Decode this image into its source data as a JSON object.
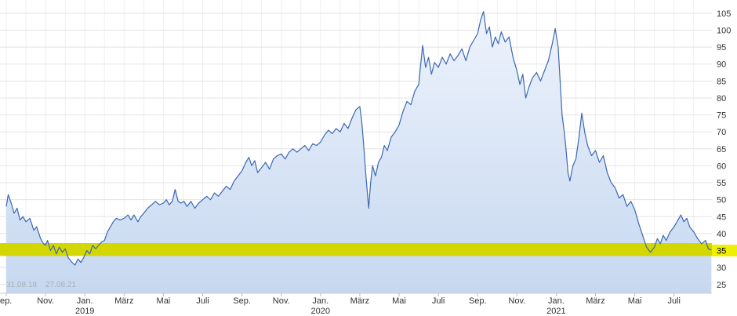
{
  "watermark": {
    "text": "31.08.18    27.08.21"
  },
  "colors": {
    "line": "#3a68b4",
    "fill_top": "#eef3fc",
    "fill_bottom": "#c6d8f0",
    "band": "#d4d600",
    "band_label_bg": "#eef000",
    "band_label_text": "#000000",
    "grid_h": "#e3e3e3",
    "grid_v": "#efefef",
    "axis_text": "#333333",
    "tick": "#bbbbbb",
    "axis_line": "#cccccc"
  },
  "chart_data": {
    "type": "area",
    "title": "",
    "xlabel": "",
    "ylabel": "",
    "x_unit": "months since Sep 2018",
    "date_range_start": "31.08.18",
    "date_range_end": "27.08.21",
    "ylim": [
      22.4,
      108.9
    ],
    "grid": true,
    "y_ticks": [
      105,
      100,
      95,
      90,
      85,
      80,
      75,
      70,
      65,
      60,
      55,
      50,
      45,
      40,
      35,
      30,
      25
    ],
    "last_price_band": {
      "value": 35,
      "low": 33.4,
      "high": 37.2
    },
    "x_ticks": [
      {
        "m": 0,
        "label": "ep.",
        "align": "start"
      },
      {
        "m": 2,
        "label": "Nov."
      },
      {
        "m": 4,
        "label": "Jan.",
        "year": "2019"
      },
      {
        "m": 6,
        "label": "März"
      },
      {
        "m": 8,
        "label": "Mai"
      },
      {
        "m": 10,
        "label": "Juli"
      },
      {
        "m": 12,
        "label": "Sep."
      },
      {
        "m": 14,
        "label": "Nov."
      },
      {
        "m": 16,
        "label": "Jan.",
        "year": "2020"
      },
      {
        "m": 18,
        "label": "März"
      },
      {
        "m": 20,
        "label": "Mai"
      },
      {
        "m": 22,
        "label": "Juli"
      },
      {
        "m": 24,
        "label": "Sep."
      },
      {
        "m": 26,
        "label": "Nov."
      },
      {
        "m": 28,
        "label": "Jan.",
        "year": "2021"
      },
      {
        "m": 30,
        "label": "März"
      },
      {
        "m": 32,
        "label": "Mai"
      },
      {
        "m": 34,
        "label": "Juli"
      }
    ],
    "points": [
      [
        0,
        48
      ],
      [
        0.1,
        51.5
      ],
      [
        0.25,
        49
      ],
      [
        0.4,
        46
      ],
      [
        0.55,
        47.5
      ],
      [
        0.7,
        44
      ],
      [
        0.85,
        45
      ],
      [
        1.0,
        43.5
      ],
      [
        1.2,
        44.5
      ],
      [
        1.4,
        41
      ],
      [
        1.55,
        42
      ],
      [
        1.75,
        38.5
      ],
      [
        1.9,
        37
      ],
      [
        2.0,
        36.5
      ],
      [
        2.1,
        38
      ],
      [
        2.25,
        35
      ],
      [
        2.4,
        36.5
      ],
      [
        2.55,
        34
      ],
      [
        2.7,
        36
      ],
      [
        2.85,
        34.5
      ],
      [
        3.0,
        35.5
      ],
      [
        3.15,
        33
      ],
      [
        3.35,
        31.5
      ],
      [
        3.5,
        30.7
      ],
      [
        3.65,
        32.5
      ],
      [
        3.8,
        31.5
      ],
      [
        3.95,
        33
      ],
      [
        4.1,
        35
      ],
      [
        4.25,
        34
      ],
      [
        4.4,
        36.5
      ],
      [
        4.55,
        35.5
      ],
      [
        4.7,
        36.5
      ],
      [
        4.85,
        37.5
      ],
      [
        5.0,
        38
      ],
      [
        5.15,
        40.5
      ],
      [
        5.3,
        42
      ],
      [
        5.45,
        43.5
      ],
      [
        5.6,
        44.5
      ],
      [
        5.8,
        44
      ],
      [
        6.0,
        44.5
      ],
      [
        6.2,
        45.5
      ],
      [
        6.35,
        44
      ],
      [
        6.5,
        45.5
      ],
      [
        6.7,
        43.5
      ],
      [
        6.85,
        45
      ],
      [
        7.0,
        46
      ],
      [
        7.2,
        47.5
      ],
      [
        7.4,
        48.5
      ],
      [
        7.6,
        49.5
      ],
      [
        7.8,
        48.5
      ],
      [
        8.0,
        49
      ],
      [
        8.15,
        50
      ],
      [
        8.3,
        48.5
      ],
      [
        8.45,
        49.5
      ],
      [
        8.6,
        53
      ],
      [
        8.75,
        49.5
      ],
      [
        8.9,
        49
      ],
      [
        9.05,
        49.5
      ],
      [
        9.2,
        48
      ],
      [
        9.4,
        49.5
      ],
      [
        9.6,
        47.5
      ],
      [
        9.8,
        49
      ],
      [
        10.0,
        50
      ],
      [
        10.2,
        51
      ],
      [
        10.4,
        50
      ],
      [
        10.6,
        52
      ],
      [
        10.8,
        51
      ],
      [
        11.0,
        52.5
      ],
      [
        11.2,
        54
      ],
      [
        11.4,
        53
      ],
      [
        11.6,
        55.5
      ],
      [
        11.8,
        57
      ],
      [
        12.0,
        58.5
      ],
      [
        12.2,
        61
      ],
      [
        12.35,
        62.5
      ],
      [
        12.5,
        60
      ],
      [
        12.65,
        61.5
      ],
      [
        12.8,
        58
      ],
      [
        13.0,
        59.5
      ],
      [
        13.2,
        61
      ],
      [
        13.4,
        59
      ],
      [
        13.6,
        62
      ],
      [
        13.8,
        63
      ],
      [
        14.0,
        63.5
      ],
      [
        14.2,
        62
      ],
      [
        14.4,
        64
      ],
      [
        14.6,
        65
      ],
      [
        14.8,
        64
      ],
      [
        15.0,
        65
      ],
      [
        15.2,
        66
      ],
      [
        15.4,
        64.5
      ],
      [
        15.6,
        66.5
      ],
      [
        15.8,
        66
      ],
      [
        16.0,
        67
      ],
      [
        16.2,
        69
      ],
      [
        16.4,
        70.5
      ],
      [
        16.6,
        69.5
      ],
      [
        16.8,
        71
      ],
      [
        17.0,
        70
      ],
      [
        17.2,
        72.5
      ],
      [
        17.4,
        71
      ],
      [
        17.6,
        74
      ],
      [
        17.8,
        76.5
      ],
      [
        18.0,
        77.5
      ],
      [
        18.1,
        73
      ],
      [
        18.2,
        66
      ],
      [
        18.3,
        58
      ],
      [
        18.45,
        47.5
      ],
      [
        18.55,
        55
      ],
      [
        18.65,
        60
      ],
      [
        18.8,
        57
      ],
      [
        18.95,
        61
      ],
      [
        19.1,
        62.5
      ],
      [
        19.25,
        66
      ],
      [
        19.4,
        64.5
      ],
      [
        19.6,
        68.5
      ],
      [
        19.8,
        70
      ],
      [
        20.0,
        72
      ],
      [
        20.2,
        76
      ],
      [
        20.4,
        79
      ],
      [
        20.6,
        78
      ],
      [
        20.8,
        82
      ],
      [
        21.0,
        84
      ],
      [
        21.1,
        90
      ],
      [
        21.2,
        95.5
      ],
      [
        21.35,
        89
      ],
      [
        21.5,
        92
      ],
      [
        21.65,
        87
      ],
      [
        21.8,
        90.5
      ],
      [
        22.0,
        89
      ],
      [
        22.2,
        92
      ],
      [
        22.4,
        90
      ],
      [
        22.6,
        93
      ],
      [
        22.8,
        91
      ],
      [
        23.0,
        92.5
      ],
      [
        23.2,
        94.5
      ],
      [
        23.4,
        91
      ],
      [
        23.6,
        95
      ],
      [
        23.8,
        97
      ],
      [
        24.0,
        99
      ],
      [
        24.15,
        103
      ],
      [
        24.3,
        105.5
      ],
      [
        24.45,
        99
      ],
      [
        24.6,
        101
      ],
      [
        24.75,
        95
      ],
      [
        24.9,
        98
      ],
      [
        25.05,
        96
      ],
      [
        25.2,
        99.5
      ],
      [
        25.4,
        96.5
      ],
      [
        25.6,
        98
      ],
      [
        25.8,
        92
      ],
      [
        26.0,
        88
      ],
      [
        26.15,
        84
      ],
      [
        26.3,
        87
      ],
      [
        26.45,
        80
      ],
      [
        26.6,
        83
      ],
      [
        26.8,
        86
      ],
      [
        27.0,
        87.5
      ],
      [
        27.2,
        85
      ],
      [
        27.4,
        88
      ],
      [
        27.6,
        91
      ],
      [
        27.8,
        96
      ],
      [
        27.95,
        100.5
      ],
      [
        28.1,
        95
      ],
      [
        28.2,
        85
      ],
      [
        28.3,
        75
      ],
      [
        28.4,
        70.5
      ],
      [
        28.5,
        65
      ],
      [
        28.6,
        58
      ],
      [
        28.7,
        55.5
      ],
      [
        28.85,
        60
      ],
      [
        29.0,
        62
      ],
      [
        29.15,
        68
      ],
      [
        29.3,
        75.5
      ],
      [
        29.45,
        70
      ],
      [
        29.6,
        66
      ],
      [
        29.8,
        63
      ],
      [
        30.0,
        64.5
      ],
      [
        30.2,
        61
      ],
      [
        30.4,
        63
      ],
      [
        30.6,
        58
      ],
      [
        30.8,
        55
      ],
      [
        31.0,
        53.5
      ],
      [
        31.2,
        50.5
      ],
      [
        31.4,
        51.5
      ],
      [
        31.6,
        48
      ],
      [
        31.8,
        49.5
      ],
      [
        32.0,
        47
      ],
      [
        32.2,
        43
      ],
      [
        32.4,
        39.5
      ],
      [
        32.6,
        36
      ],
      [
        32.8,
        34.5
      ],
      [
        33.0,
        36
      ],
      [
        33.15,
        38.5
      ],
      [
        33.3,
        37
      ],
      [
        33.45,
        39.5
      ],
      [
        33.6,
        38
      ],
      [
        33.8,
        40.5
      ],
      [
        34.0,
        42
      ],
      [
        34.2,
        44
      ],
      [
        34.35,
        45.5
      ],
      [
        34.5,
        43.5
      ],
      [
        34.65,
        44.5
      ],
      [
        34.8,
        42
      ],
      [
        35.0,
        40.5
      ],
      [
        35.2,
        38.5
      ],
      [
        35.4,
        37
      ],
      [
        35.6,
        38
      ],
      [
        35.75,
        35.5
      ],
      [
        35.9,
        35.2
      ]
    ]
  }
}
